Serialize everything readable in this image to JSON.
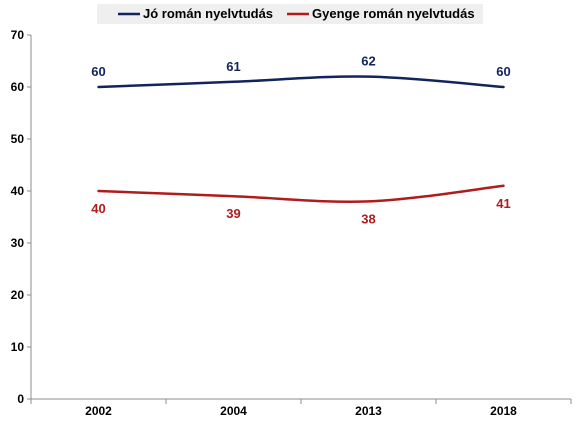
{
  "chart_data": {
    "type": "line",
    "categories": [
      "2002",
      "2004",
      "2013",
      "2018"
    ],
    "series": [
      {
        "name": "Jó román nyelvtudás",
        "values": [
          60,
          61,
          62,
          60
        ],
        "color": "#13245c"
      },
      {
        "name": "Gyenge román nyelvtudás",
        "values": [
          40,
          39,
          38,
          41
        ],
        "color": "#b01c1c"
      }
    ],
    "title": "",
    "xlabel": "",
    "ylabel": "",
    "ylim": [
      0,
      70
    ],
    "yticks": [
      0,
      10,
      20,
      30,
      40,
      50,
      60,
      70
    ],
    "grid": false,
    "legend": "top",
    "smooth": true
  }
}
